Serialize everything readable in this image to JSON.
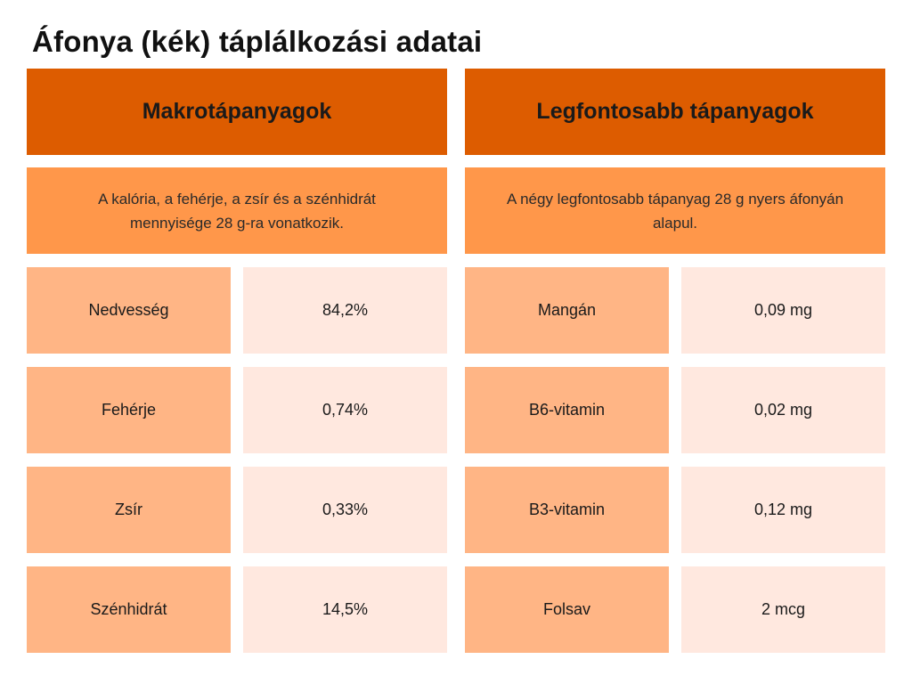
{
  "title": "Áfonya (kék) táplálkozási adatai",
  "colors": {
    "header_bg": "#dd5c00",
    "note_bg": "#ff974a",
    "label_bg": "#ffb585",
    "value_bg": "#ffe8df"
  },
  "macros": {
    "header": "Makrotápanyagok",
    "note": "A kalória, a fehérje, a zsír és a szénhidrát mennyisége 28 g-ra vonatkozik.",
    "rows": [
      {
        "label": "Nedvesség",
        "value": "84,2%"
      },
      {
        "label": "Fehérje",
        "value": "0,74%"
      },
      {
        "label": "Zsír",
        "value": "0,33%"
      },
      {
        "label": "Szénhidrát",
        "value": "14,5%"
      }
    ]
  },
  "nutrients": {
    "header": "Legfontosabb tápanyagok",
    "note": "A négy legfontosabb tápanyag 28 g nyers áfonyán alapul.",
    "rows": [
      {
        "label": "Mangán",
        "value": "0,09 mg"
      },
      {
        "label": "B6-vitamin",
        "value": "0,02 mg"
      },
      {
        "label": "B3-vitamin",
        "value": "0,12 mg"
      },
      {
        "label": "Folsav",
        "value": "2 mcg"
      }
    ]
  }
}
